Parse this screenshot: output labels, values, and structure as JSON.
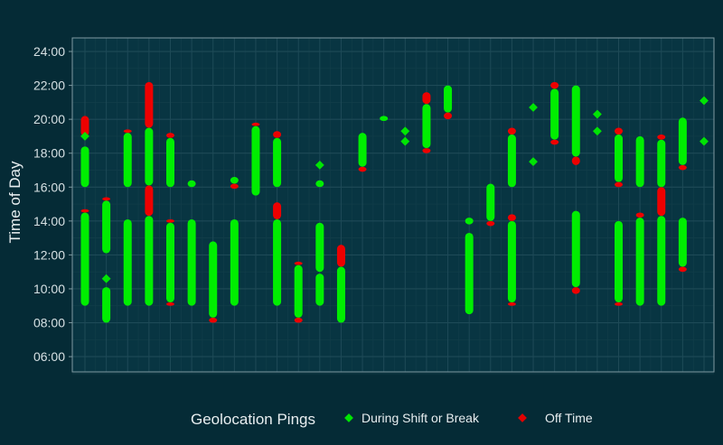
{
  "chart_data": {
    "type": "scatter",
    "title": "",
    "xlabel": "",
    "ylabel": "Time of Day",
    "y_unit": "hours",
    "ylim": [
      5.1,
      24.8
    ],
    "yticks": [
      6,
      8,
      10,
      12,
      14,
      16,
      18,
      20,
      22,
      24
    ],
    "ytick_labels": [
      "06:00",
      "08:00",
      "10:00",
      "12:00",
      "14:00",
      "16:00",
      "18:00",
      "20:00",
      "22:00",
      "24:00"
    ],
    "x_tick_labels_shown": false,
    "grid": true,
    "legend": {
      "title": "Geolocation Pings",
      "placement": "bottom",
      "entries": [
        {
          "key": "on",
          "label": "During Shift or Break"
        },
        {
          "key": "off",
          "label": "Off Time"
        }
      ]
    },
    "colors": {
      "on": "#00ee00",
      "off": "#ee0000",
      "background": "#052b36",
      "panel": "#083542",
      "grid_major": "#1e4a57",
      "grid_minor": "#123e4a",
      "panel_border": "#7f9aa2"
    },
    "columns": [
      {
        "x": 1,
        "segments": [
          [
            "off",
            19.0,
            20.2
          ],
          [
            "on",
            16.0,
            18.4
          ],
          [
            "off",
            14.5,
            14.7
          ],
          [
            "on",
            9.0,
            14.5
          ]
        ],
        "points": [
          [
            "on",
            19.0
          ]
        ]
      },
      {
        "x": 2,
        "segments": [
          [
            "off",
            15.2,
            15.4
          ],
          [
            "on",
            12.1,
            15.2
          ],
          [
            "on",
            8.0,
            10.1
          ]
        ],
        "points": [
          [
            "on",
            10.6
          ]
        ]
      },
      {
        "x": 3,
        "segments": [
          [
            "off",
            19.2,
            19.4
          ],
          [
            "on",
            16.0,
            19.2
          ],
          [
            "on",
            9.0,
            14.1
          ]
        ],
        "points": []
      },
      {
        "x": 4,
        "segments": [
          [
            "off",
            19.5,
            22.2
          ],
          [
            "on",
            16.1,
            19.5
          ],
          [
            "off",
            14.3,
            16.1
          ],
          [
            "on",
            9.0,
            14.3
          ]
        ],
        "points": []
      },
      {
        "x": 5,
        "segments": [
          [
            "off",
            18.9,
            19.2
          ],
          [
            "on",
            16.0,
            18.9
          ],
          [
            "off",
            13.9,
            14.1
          ],
          [
            "on",
            9.2,
            13.9
          ],
          [
            "off",
            9.0,
            9.2
          ]
        ],
        "points": []
      },
      {
        "x": 6,
        "segments": [
          [
            "on",
            16.0,
            16.4
          ],
          [
            "on",
            9.0,
            14.1
          ]
        ],
        "points": []
      },
      {
        "x": 7,
        "segments": [
          [
            "on",
            8.3,
            12.8
          ],
          [
            "off",
            8.0,
            8.3
          ]
        ],
        "points": []
      },
      {
        "x": 8,
        "segments": [
          [
            "on",
            16.2,
            16.6
          ],
          [
            "off",
            15.9,
            16.2
          ],
          [
            "on",
            9.0,
            14.1
          ]
        ],
        "points": []
      },
      {
        "x": 9,
        "segments": [
          [
            "off",
            19.6,
            19.8
          ],
          [
            "on",
            15.5,
            19.6
          ]
        ],
        "points": []
      },
      {
        "x": 10,
        "segments": [
          [
            "off",
            18.9,
            19.3
          ],
          [
            "on",
            16.0,
            18.9
          ],
          [
            "off",
            14.1,
            15.1
          ],
          [
            "on",
            9.0,
            14.1
          ]
        ],
        "points": []
      },
      {
        "x": 11,
        "segments": [
          [
            "off",
            11.4,
            11.6
          ],
          [
            "on",
            8.3,
            11.4
          ],
          [
            "off",
            8.0,
            8.3
          ]
        ],
        "points": []
      },
      {
        "x": 12,
        "segments": [
          [
            "on",
            16.0,
            16.4
          ],
          [
            "on",
            11.0,
            13.9
          ],
          [
            "on",
            9.0,
            10.9
          ]
        ],
        "points": [
          [
            "on",
            17.3
          ]
        ]
      },
      {
        "x": 13,
        "segments": [
          [
            "off",
            11.3,
            12.6
          ],
          [
            "on",
            8.0,
            11.3
          ]
        ],
        "points": []
      },
      {
        "x": 14,
        "segments": [
          [
            "off",
            16.9,
            17.2
          ],
          [
            "on",
            17.2,
            19.2
          ]
        ],
        "points": []
      },
      {
        "x": 15,
        "segments": [
          [
            "on",
            19.9,
            20.2
          ]
        ],
        "points": []
      },
      {
        "x": 16,
        "segments": [],
        "points": [
          [
            "on",
            19.3
          ],
          [
            "on",
            18.7
          ]
        ]
      },
      {
        "x": 17,
        "segments": [
          [
            "off",
            20.9,
            21.6
          ],
          [
            "on",
            18.3,
            20.9
          ],
          [
            "off",
            18.0,
            18.3
          ]
        ],
        "points": []
      },
      {
        "x": 18,
        "segments": [
          [
            "on",
            20.4,
            22.0
          ],
          [
            "off",
            20.0,
            20.4
          ]
        ],
        "points": []
      },
      {
        "x": 19,
        "segments": [
          [
            "on",
            13.8,
            14.2
          ],
          [
            "on",
            8.5,
            13.3
          ]
        ],
        "points": []
      },
      {
        "x": 20,
        "segments": [
          [
            "on",
            14.0,
            16.2
          ],
          [
            "off",
            13.7,
            14.0
          ]
        ],
        "points": []
      },
      {
        "x": 21,
        "segments": [
          [
            "off",
            19.1,
            19.5
          ],
          [
            "on",
            16.0,
            19.1
          ],
          [
            "off",
            14.0,
            14.4
          ],
          [
            "on",
            9.2,
            14.0
          ],
          [
            "off",
            9.0,
            9.2
          ]
        ],
        "points": []
      },
      {
        "x": 22,
        "segments": [],
        "points": [
          [
            "on",
            20.7
          ],
          [
            "on",
            17.5
          ]
        ]
      },
      {
        "x": 23,
        "segments": [
          [
            "off",
            21.8,
            22.2
          ],
          [
            "on",
            18.8,
            21.8
          ],
          [
            "off",
            18.5,
            18.8
          ]
        ],
        "points": []
      },
      {
        "x": 24,
        "segments": [
          [
            "on",
            17.8,
            22.0
          ],
          [
            "off",
            17.3,
            17.8
          ],
          [
            "on",
            10.1,
            14.6
          ],
          [
            "off",
            9.7,
            10.1
          ]
        ],
        "points": []
      },
      {
        "x": 25,
        "segments": [],
        "points": [
          [
            "on",
            20.3
          ],
          [
            "on",
            19.3
          ]
        ]
      },
      {
        "x": 26,
        "segments": [
          [
            "off",
            19.1,
            19.5
          ],
          [
            "on",
            16.3,
            19.1
          ],
          [
            "off",
            16.0,
            16.3
          ],
          [
            "on",
            9.2,
            14.0
          ],
          [
            "off",
            9.0,
            9.2
          ]
        ],
        "points": []
      },
      {
        "x": 27,
        "segments": [
          [
            "on",
            16.0,
            19.0
          ],
          [
            "off",
            14.2,
            14.5
          ],
          [
            "on",
            9.0,
            14.2
          ]
        ],
        "points": []
      },
      {
        "x": 28,
        "segments": [
          [
            "off",
            18.8,
            19.1
          ],
          [
            "on",
            16.0,
            18.8
          ],
          [
            "off",
            14.3,
            16.0
          ],
          [
            "on",
            9.0,
            14.3
          ]
        ],
        "points": []
      },
      {
        "x": 29,
        "segments": [
          [
            "on",
            17.3,
            20.1
          ],
          [
            "off",
            17.0,
            17.3
          ],
          [
            "on",
            11.3,
            14.2
          ],
          [
            "off",
            11.0,
            11.3
          ]
        ],
        "points": []
      },
      {
        "x": 30,
        "segments": [],
        "points": [
          [
            "on",
            21.1
          ],
          [
            "on",
            18.7
          ]
        ]
      }
    ]
  }
}
